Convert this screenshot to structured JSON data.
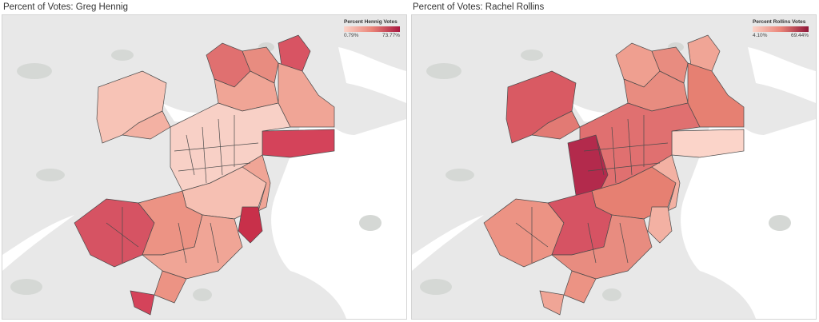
{
  "panels": [
    {
      "title": "Percent of Votes: Greg Hennig",
      "legend": {
        "title": "Percent Hennig Votes",
        "min": "0.79%",
        "max": "73.77%"
      },
      "colors": {
        "low": "#f9c8bd",
        "mid": "#ea8478",
        "high": "#c3204b"
      }
    },
    {
      "title": "Percent of Votes: Rachel Rollins",
      "legend": {
        "title": "Percent Rollins Votes",
        "min": "4.10%",
        "max": "69.44%"
      },
      "colors": {
        "low": "#f9c8bd",
        "mid": "#ea8478",
        "high": "#9c1a3f"
      }
    }
  ],
  "basemap": {
    "land": "#e8e8e8",
    "water": "#ffffff",
    "parks": "#d5d8d5",
    "precinct_stroke": "#4a4a4a"
  }
}
